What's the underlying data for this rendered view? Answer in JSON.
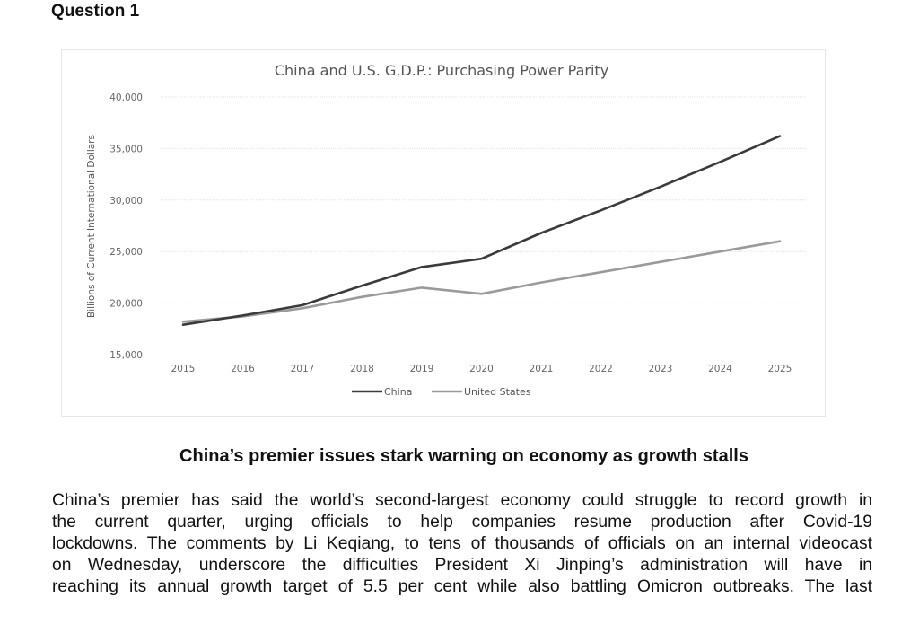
{
  "question": {
    "heading": "Question 1"
  },
  "chart_data": {
    "type": "line",
    "title": "China and U.S. G.D.P.: Purchasing Power Parity",
    "ylabel": "Billions of Current International Dollars",
    "xlabel": "",
    "x": [
      2015,
      2016,
      2017,
      2018,
      2019,
      2020,
      2021,
      2022,
      2023,
      2024,
      2025
    ],
    "x_tick_labels": [
      "2015",
      "2016",
      "2017",
      "2018",
      "2019",
      "2020",
      "2021",
      "2022",
      "2023",
      "2024",
      "2025"
    ],
    "ylim": [
      15000,
      40000
    ],
    "y_tick_values": [
      15000,
      20000,
      25000,
      30000,
      35000,
      40000
    ],
    "y_tick_labels": [
      "15,000",
      "20,000",
      "25,000",
      "30,000",
      "35,000",
      "40,000"
    ],
    "grid": true,
    "legend_position": "bottom",
    "series": [
      {
        "name": "China",
        "color": "#3a3a3a",
        "values": [
          17900,
          18800,
          19800,
          21700,
          23500,
          24300,
          26800,
          29000,
          31300,
          33700,
          36200
        ]
      },
      {
        "name": "United States",
        "color": "#9a9a9a",
        "values": [
          18200,
          18700,
          19500,
          20600,
          21500,
          20900,
          22000,
          23000,
          24000,
          25000,
          26000
        ]
      }
    ]
  },
  "article": {
    "title": "China’s premier issues stark warning on economy as growth stalls",
    "lines": [
      "China’s premier has said the world’s second-largest economy could struggle to record growth in",
      "the current quarter, urging officials to help companies resume production after Covid-19",
      "lockdowns. The comments by Li Keqiang, to tens of thousands of officials on an internal videocast",
      "on Wednesday, underscore the difficulties President Xi Jinping’s administration will have in",
      "reaching its annual growth target of 5.5 per cent while also battling Omicron outbreaks. The last"
    ]
  }
}
